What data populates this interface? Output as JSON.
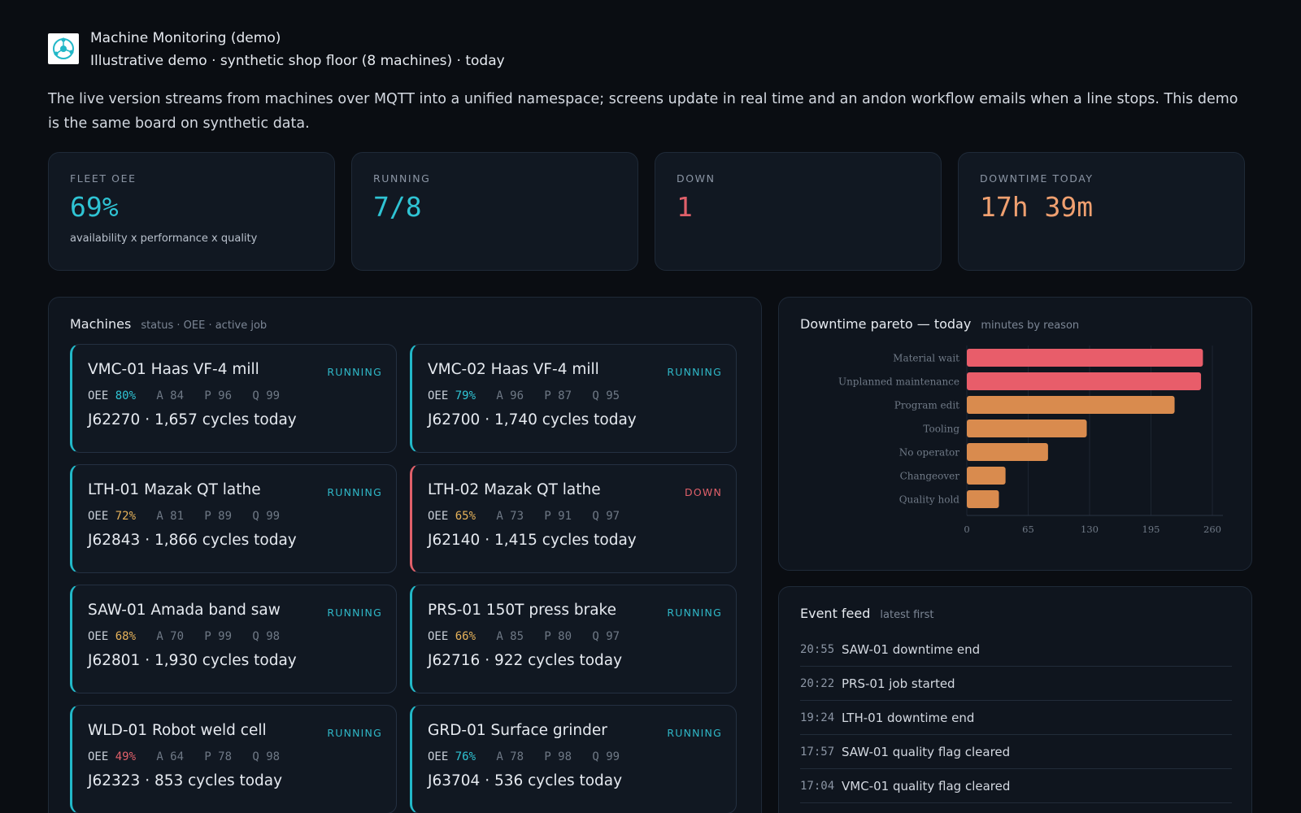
{
  "header": {
    "title": "Machine Monitoring (demo)",
    "subtitle": "Illustrative demo · synthetic shop floor (8 machines) · today",
    "logo_icon": "network-hub-icon"
  },
  "intro": "The live version streams from machines over MQTT into a unified namespace; screens update in real time and an andon workflow emails when a line stops. This demo is the same board on synthetic data.",
  "colors": {
    "teal": "#2fc4d4",
    "amber": "#e6b25a",
    "red": "#e0606a",
    "orange": "#f0a070"
  },
  "kpis": [
    {
      "label": "FLEET OEE",
      "value": "69%",
      "sub": "availability x performance x quality",
      "color": "#2fc4d4"
    },
    {
      "label": "RUNNING",
      "value": "7/8",
      "sub": "",
      "color": "#2fc4d4"
    },
    {
      "label": "DOWN",
      "value": "1",
      "sub": "",
      "color": "#e0606a"
    },
    {
      "label": "DOWNTIME TODAY",
      "value": "17h 39m",
      "sub": "",
      "color": "#f0a070"
    }
  ],
  "machines_panel": {
    "title": "Machines",
    "hint": "status · OEE · active job"
  },
  "machines": [
    {
      "id": "VMC-01",
      "model": "Haas VF-4 mill",
      "status": "RUNNING",
      "oee": "80%",
      "oee_color": "#2fc4d4",
      "a": "A 84",
      "p": "P 96",
      "q": "Q 99",
      "job": "J62270 · 1,657 cycles today"
    },
    {
      "id": "VMC-02",
      "model": "Haas VF-4 mill",
      "status": "RUNNING",
      "oee": "79%",
      "oee_color": "#2fc4d4",
      "a": "A 96",
      "p": "P 87",
      "q": "Q 95",
      "job": "J62700 · 1,740 cycles today"
    },
    {
      "id": "LTH-01",
      "model": "Mazak QT lathe",
      "status": "RUNNING",
      "oee": "72%",
      "oee_color": "#e6b25a",
      "a": "A 81",
      "p": "P 89",
      "q": "Q 99",
      "job": "J62843 · 1,866 cycles today"
    },
    {
      "id": "LTH-02",
      "model": "Mazak QT lathe",
      "status": "DOWN",
      "oee": "65%",
      "oee_color": "#e6b25a",
      "a": "A 73",
      "p": "P 91",
      "q": "Q 97",
      "job": "J62140 · 1,415 cycles today"
    },
    {
      "id": "SAW-01",
      "model": "Amada band saw",
      "status": "RUNNING",
      "oee": "68%",
      "oee_color": "#e6b25a",
      "a": "A 70",
      "p": "P 99",
      "q": "Q 98",
      "job": "J62801 · 1,930 cycles today"
    },
    {
      "id": "PRS-01",
      "model": "150T press brake",
      "status": "RUNNING",
      "oee": "66%",
      "oee_color": "#e6b25a",
      "a": "A 85",
      "p": "P 80",
      "q": "Q 97",
      "job": "J62716 · 922 cycles today"
    },
    {
      "id": "WLD-01",
      "model": "Robot weld cell",
      "status": "RUNNING",
      "oee": "49%",
      "oee_color": "#e0606a",
      "a": "A 64",
      "p": "P 78",
      "q": "Q 98",
      "job": "J62323 · 853 cycles today"
    },
    {
      "id": "GRD-01",
      "model": "Surface grinder",
      "status": "RUNNING",
      "oee": "76%",
      "oee_color": "#2fc4d4",
      "a": "A 78",
      "p": "P 98",
      "q": "Q 99",
      "job": "J63704 · 536 cycles today"
    }
  ],
  "pareto_panel": {
    "title": "Downtime pareto — today",
    "hint": "minutes by reason"
  },
  "chart_data": {
    "type": "bar",
    "orientation": "horizontal",
    "categories": [
      "Material wait",
      "Unplanned maintenance",
      "Program edit",
      "Tooling",
      "No operator",
      "Changeover",
      "Quality hold"
    ],
    "values": [
      250,
      248,
      220,
      127,
      86,
      41,
      34
    ],
    "bar_colors": [
      "#e85d6a",
      "#e85d6a",
      "#d98b4e",
      "#d98b4e",
      "#d98b4e",
      "#d98b4e",
      "#d98b4e"
    ],
    "xticks": [
      0,
      65,
      130,
      195,
      260
    ],
    "xlim": [
      0,
      260
    ],
    "grid": true
  },
  "events_panel": {
    "title": "Event feed",
    "hint": "latest first"
  },
  "events": [
    {
      "time": "20:55",
      "text": "SAW-01 downtime end"
    },
    {
      "time": "20:22",
      "text": "PRS-01 job started"
    },
    {
      "time": "19:24",
      "text": "LTH-01 downtime end"
    },
    {
      "time": "17:57",
      "text": "SAW-01 quality flag cleared"
    },
    {
      "time": "17:04",
      "text": "VMC-01 quality flag cleared"
    }
  ]
}
